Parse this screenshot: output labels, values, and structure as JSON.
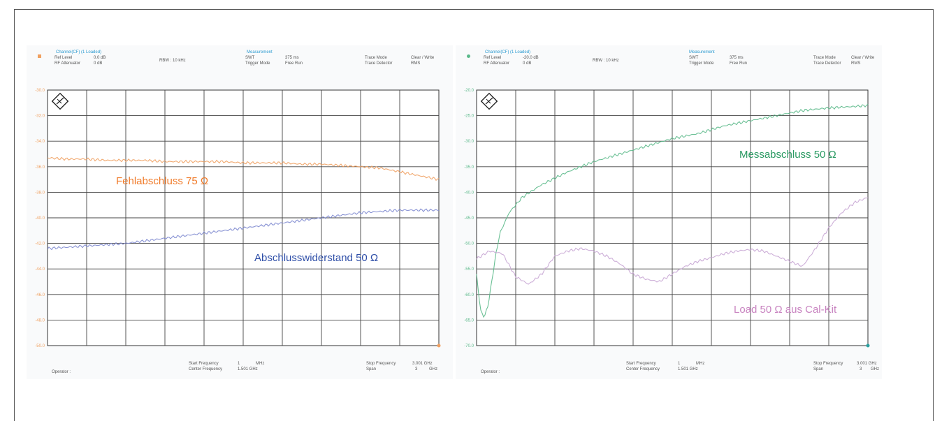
{
  "chart_data": [
    {
      "type": "line",
      "header": {
        "title": "Channel(CF) (1 Loaded)",
        "ref_level_label": "Ref Level",
        "ref_level": "0.0 dB",
        "rf_att_label": "RF Attenuator",
        "rf_att": "0 dB",
        "rbw": "RBW : 10 kHz",
        "group_title": "Measurement",
        "swt_label": "SWT",
        "swt": "375 ms",
        "trigger_label": "Trigger Mode",
        "trigger": "Free Run",
        "trace_mode_label": "Trace Mode",
        "trace_mode": "Clear / Write",
        "trace_det_label": "Trace Detector",
        "trace_det": "RMS"
      },
      "yticks": [
        "-30.0",
        "-32.0",
        "-34.0",
        "-36.0",
        "-38.0",
        "-40.0",
        "-42.0",
        "-44.0",
        "-46.0",
        "-48.0",
        "-50.0"
      ],
      "series": [
        {
          "name": "Fehlabschluss 75 Ω",
          "color": "#f0a060",
          "x": [
            1,
            151,
            301,
            451,
            601,
            751,
            901,
            1051,
            1201,
            1351,
            1501,
            1651,
            1801,
            1951,
            2101,
            2251,
            2401,
            2551,
            2701,
            2851,
            3001
          ],
          "y": [
            -35.3,
            -35.4,
            -35.4,
            -35.5,
            -35.5,
            -35.5,
            -35.6,
            -35.6,
            -35.6,
            -35.6,
            -35.7,
            -35.7,
            -35.7,
            -35.8,
            -35.8,
            -35.9,
            -36.0,
            -36.1,
            -36.4,
            -36.7,
            -37.0
          ]
        },
        {
          "name": "Abschlusswiderstand 50 Ω",
          "color": "#7d88cf",
          "x": [
            1,
            151,
            301,
            451,
            601,
            751,
            901,
            1051,
            1201,
            1351,
            1501,
            1651,
            1801,
            1951,
            2101,
            2251,
            2401,
            2551,
            2701,
            2851,
            3001
          ],
          "y": [
            -42.4,
            -42.3,
            -42.2,
            -42.1,
            -42.0,
            -41.8,
            -41.6,
            -41.4,
            -41.2,
            -41.0,
            -40.8,
            -40.6,
            -40.4,
            -40.2,
            -40.0,
            -39.8,
            -39.6,
            -39.5,
            -39.4,
            -39.4,
            -39.4
          ]
        }
      ],
      "annotations": [
        {
          "text": "Fehlabschluss 75 Ω",
          "color": "#f07b2a"
        },
        {
          "text": "Abschlusswiderstand 50 Ω",
          "color": "#2f4fa8"
        }
      ],
      "footer": {
        "operator": "Operator :",
        "start_label": "Start Frequency",
        "start": "1",
        "start_unit": "MHz",
        "center_label": "Center Frequency",
        "center": "1.501 GHz",
        "stop_label": "Stop Frequency",
        "stop": "3.001 GHz",
        "span_label": "Span",
        "span": "3",
        "span_unit": "GHz"
      },
      "xlim": [
        1,
        3001
      ],
      "ylim": [
        -50,
        -30
      ],
      "grid": true
    },
    {
      "type": "line",
      "header": {
        "title": "Channel(CF) (1 Loaded)",
        "ref_level_label": "Ref Level",
        "ref_level": "-20.0 dB",
        "rf_att_label": "RF Attenuator",
        "rf_att": "0 dB",
        "rbw": "RBW : 10 kHz",
        "group_title": "Measurement",
        "swt_label": "SWT",
        "swt": "375 ms",
        "trigger_label": "Trigger Mode",
        "trigger": "Free Run",
        "trace_mode_label": "Trace Mode",
        "trace_mode": "Clear / Write",
        "trace_det_label": "Trace Detector",
        "trace_det": "RMS"
      },
      "yticks": [
        "-20.0",
        "-25.0",
        "-30.0",
        "-35.0",
        "-40.0",
        "-45.0",
        "-50.0",
        "-55.0",
        "-60.0",
        "-65.0",
        "-70.0"
      ],
      "series": [
        {
          "name": "Messabschluss 50 Ω",
          "color": "#5bb98a",
          "x": [
            1,
            30,
            60,
            90,
            120,
            150,
            180,
            250,
            350,
            500,
            700,
            900,
            1100,
            1300,
            1500,
            1700,
            1900,
            2100,
            2300,
            2500,
            2700,
            2900,
            3001
          ],
          "y": [
            -56.0,
            -63.0,
            -64.5,
            -62.0,
            -57.0,
            -52.0,
            -48.0,
            -44.0,
            -41.0,
            -38.5,
            -36.0,
            -34.0,
            -32.5,
            -31.0,
            -29.5,
            -28.5,
            -27.0,
            -26.0,
            -25.0,
            -24.0,
            -23.5,
            -23.2,
            -23.0
          ]
        },
        {
          "name": "Load 50 Ω aus Cal-Kit",
          "color": "#c8a6d4",
          "x": [
            1,
            100,
            200,
            300,
            400,
            500,
            600,
            700,
            800,
            900,
            1000,
            1100,
            1200,
            1300,
            1400,
            1500,
            1600,
            1700,
            1800,
            1900,
            2000,
            2100,
            2200,
            2300,
            2400,
            2500,
            2600,
            2700,
            2800,
            2900,
            3001
          ],
          "y": [
            -53.0,
            -51.5,
            -52.0,
            -56.5,
            -58.0,
            -56.0,
            -52.5,
            -51.5,
            -51.0,
            -51.5,
            -52.5,
            -54.0,
            -56.0,
            -57.0,
            -57.5,
            -56.0,
            -54.5,
            -53.5,
            -52.8,
            -52.0,
            -51.5,
            -51.2,
            -51.5,
            -52.5,
            -53.5,
            -54.5,
            -51.0,
            -47.0,
            -44.0,
            -42.0,
            -41.0
          ]
        }
      ],
      "annotations": [
        {
          "text": "Messabschluss 50 Ω",
          "color": "#2b9a63"
        },
        {
          "text": "Load 50 Ω aus Cal-Kit",
          "color": "#c883c0"
        }
      ],
      "footer": {
        "operator": "Operator :",
        "start_label": "Start Frequency",
        "start": "1",
        "start_unit": "MHz",
        "center_label": "Center Frequency",
        "center": "1.501 GHz",
        "stop_label": "Stop Frequency",
        "stop": "3.001 GHz",
        "span_label": "Span",
        "span": "3",
        "span_unit": "GHz"
      },
      "xlim": [
        1,
        3001
      ],
      "ylim": [
        -70,
        -20
      ],
      "grid": true
    }
  ]
}
